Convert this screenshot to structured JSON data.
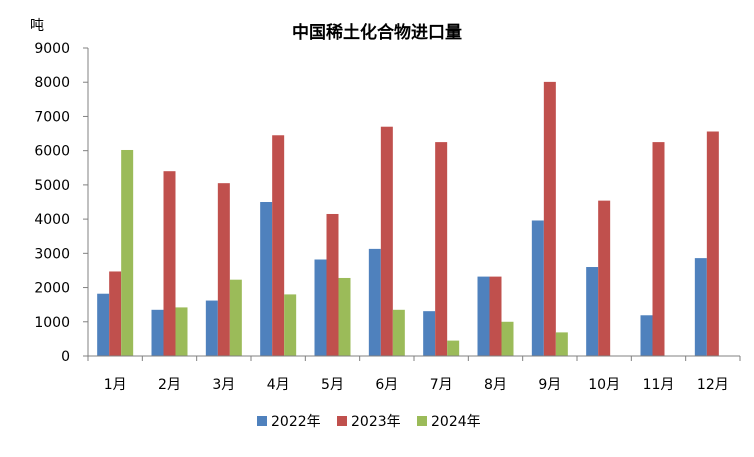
{
  "chart_data": {
    "type": "bar",
    "title": "中国稀土化合物进口量",
    "ylabel": "吨",
    "xlabel": "",
    "ylim": [
      0,
      9000
    ],
    "yticks": [
      0,
      1000,
      2000,
      3000,
      4000,
      5000,
      6000,
      7000,
      8000,
      9000
    ],
    "categories": [
      "1月",
      "2月",
      "3月",
      "4月",
      "5月",
      "6月",
      "7月",
      "8月",
      "9月",
      "10月",
      "11月",
      "12月"
    ],
    "series": [
      {
        "name": "2022年",
        "color": "#4F81BD",
        "values": [
          1820,
          1350,
          1620,
          4500,
          2820,
          3130,
          1310,
          2320,
          3960,
          2600,
          1190,
          2860
        ]
      },
      {
        "name": "2023年",
        "color": "#C0504D",
        "values": [
          2470,
          5400,
          5050,
          6450,
          4150,
          6700,
          6250,
          2320,
          8010,
          4540,
          6250,
          6560
        ]
      },
      {
        "name": "2024年",
        "color": "#9BBB59",
        "values": [
          6020,
          1420,
          2230,
          1800,
          2280,
          1350,
          450,
          1000,
          690,
          null,
          null,
          null
        ]
      }
    ],
    "grid": false,
    "legend_position": "bottom"
  }
}
